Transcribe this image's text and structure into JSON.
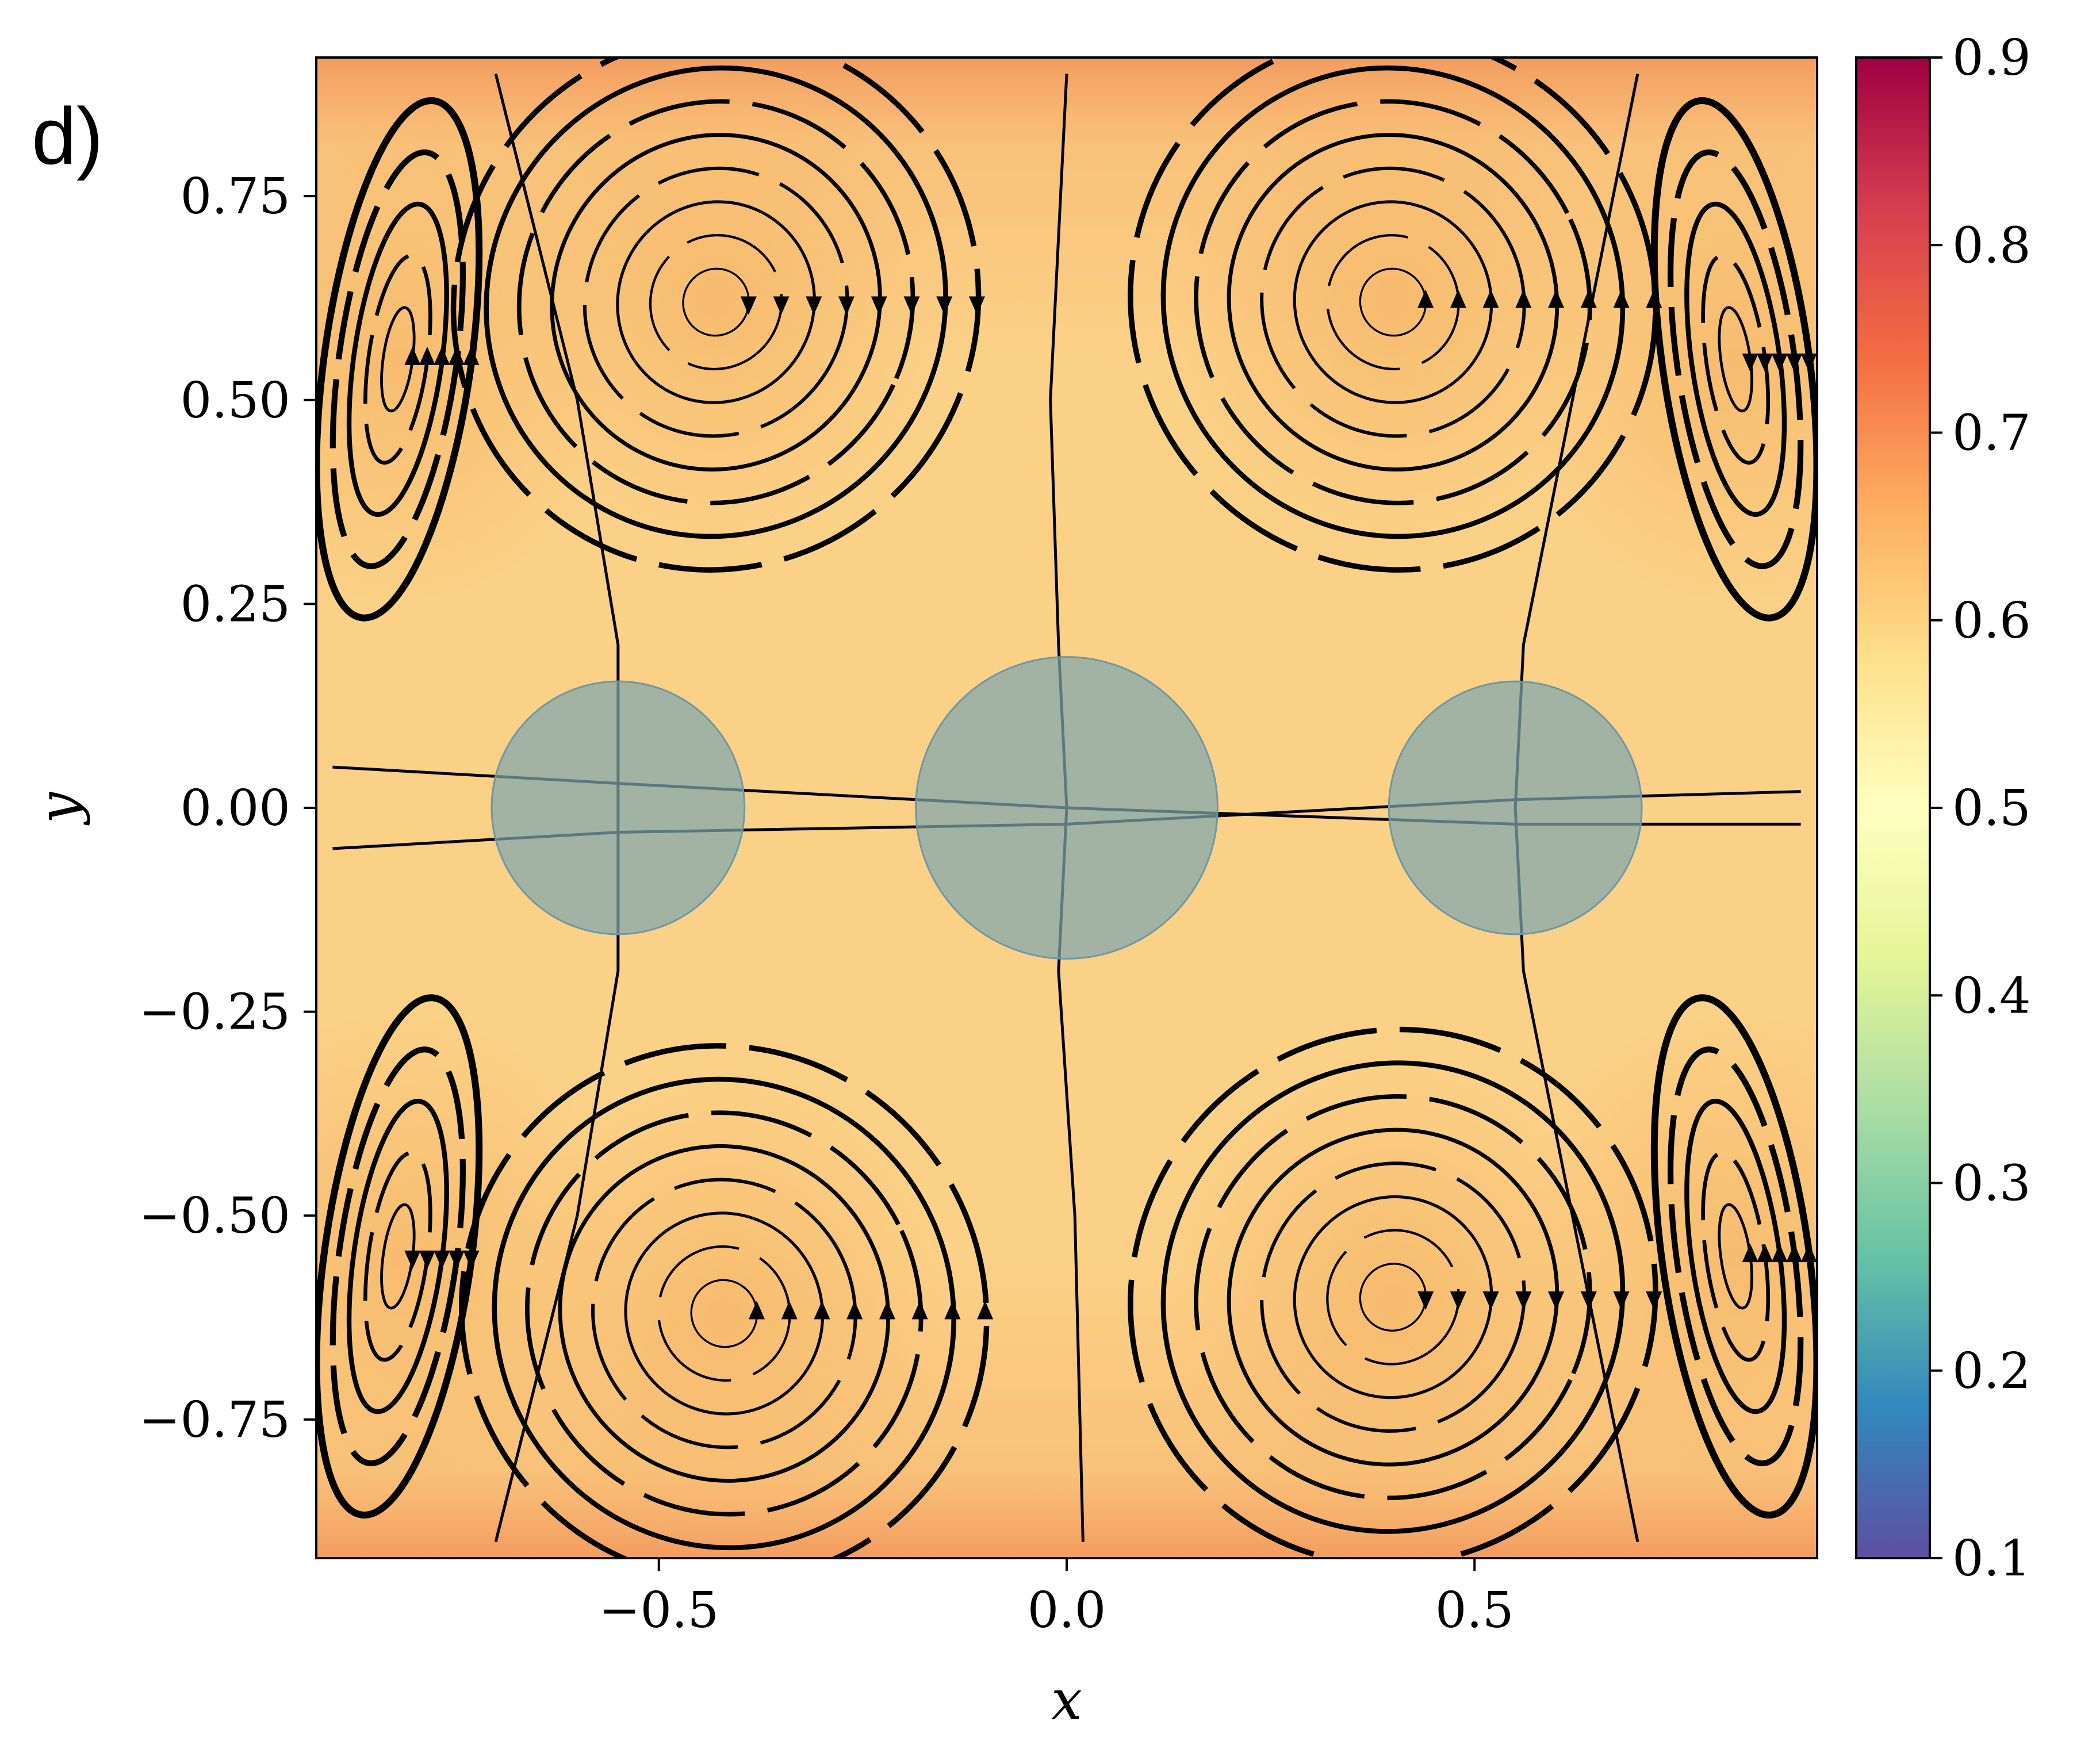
{
  "panel_label": "d)",
  "chart_data": {
    "type": "heatmap",
    "overlay": "streamplot",
    "title": "",
    "xlabel": "x",
    "ylabel": "y",
    "xlim": [
      -0.92,
      0.92
    ],
    "ylim": [
      -0.92,
      0.92
    ],
    "xticks": [
      -0.5,
      0.0,
      0.5
    ],
    "xtick_labels": [
      "−0.5",
      "0.0",
      "0.5"
    ],
    "yticks": [
      0.75,
      0.5,
      0.25,
      0.0,
      -0.25,
      -0.5,
      -0.75
    ],
    "ytick_labels": [
      "0.75",
      "0.50",
      "0.25",
      "0.00",
      "−0.25",
      "−0.50",
      "−0.75"
    ],
    "grid": false,
    "colormap": "Spectral_r",
    "colorbar": {
      "vmin": 0.1,
      "vmax": 0.9,
      "ticks": [
        0.1,
        0.2,
        0.3,
        0.4,
        0.5,
        0.6,
        0.7,
        0.8,
        0.9
      ],
      "tick_labels": [
        "0.1",
        "0.2",
        "0.3",
        "0.4",
        "0.5",
        "0.6",
        "0.7",
        "0.8",
        "0.9"
      ]
    },
    "background_value_range": [
      0.52,
      0.75
    ],
    "vortices": [
      {
        "x": -0.43,
        "y": 0.62,
        "rotation": "cw"
      },
      {
        "x": 0.4,
        "y": 0.62,
        "rotation": "ccw"
      },
      {
        "x": -0.42,
        "y": -0.62,
        "rotation": "ccw"
      },
      {
        "x": 0.4,
        "y": -0.6,
        "rotation": "cw"
      },
      {
        "x": -0.82,
        "y": 0.55,
        "rotation": "ccw"
      },
      {
        "x": 0.82,
        "y": 0.55,
        "rotation": "cw"
      },
      {
        "x": -0.82,
        "y": -0.55,
        "rotation": "cw"
      },
      {
        "x": 0.82,
        "y": -0.55,
        "rotation": "ccw"
      }
    ],
    "obstacles": [
      {
        "x": -0.55,
        "y": 0.0,
        "r": 0.155
      },
      {
        "x": 0.0,
        "y": 0.0,
        "r": 0.185
      },
      {
        "x": 0.55,
        "y": 0.0,
        "r": 0.155
      }
    ],
    "colors": {
      "obstacle_fill": "#7fa7b0",
      "streamline": "#000000",
      "frame": "#000000"
    }
  }
}
